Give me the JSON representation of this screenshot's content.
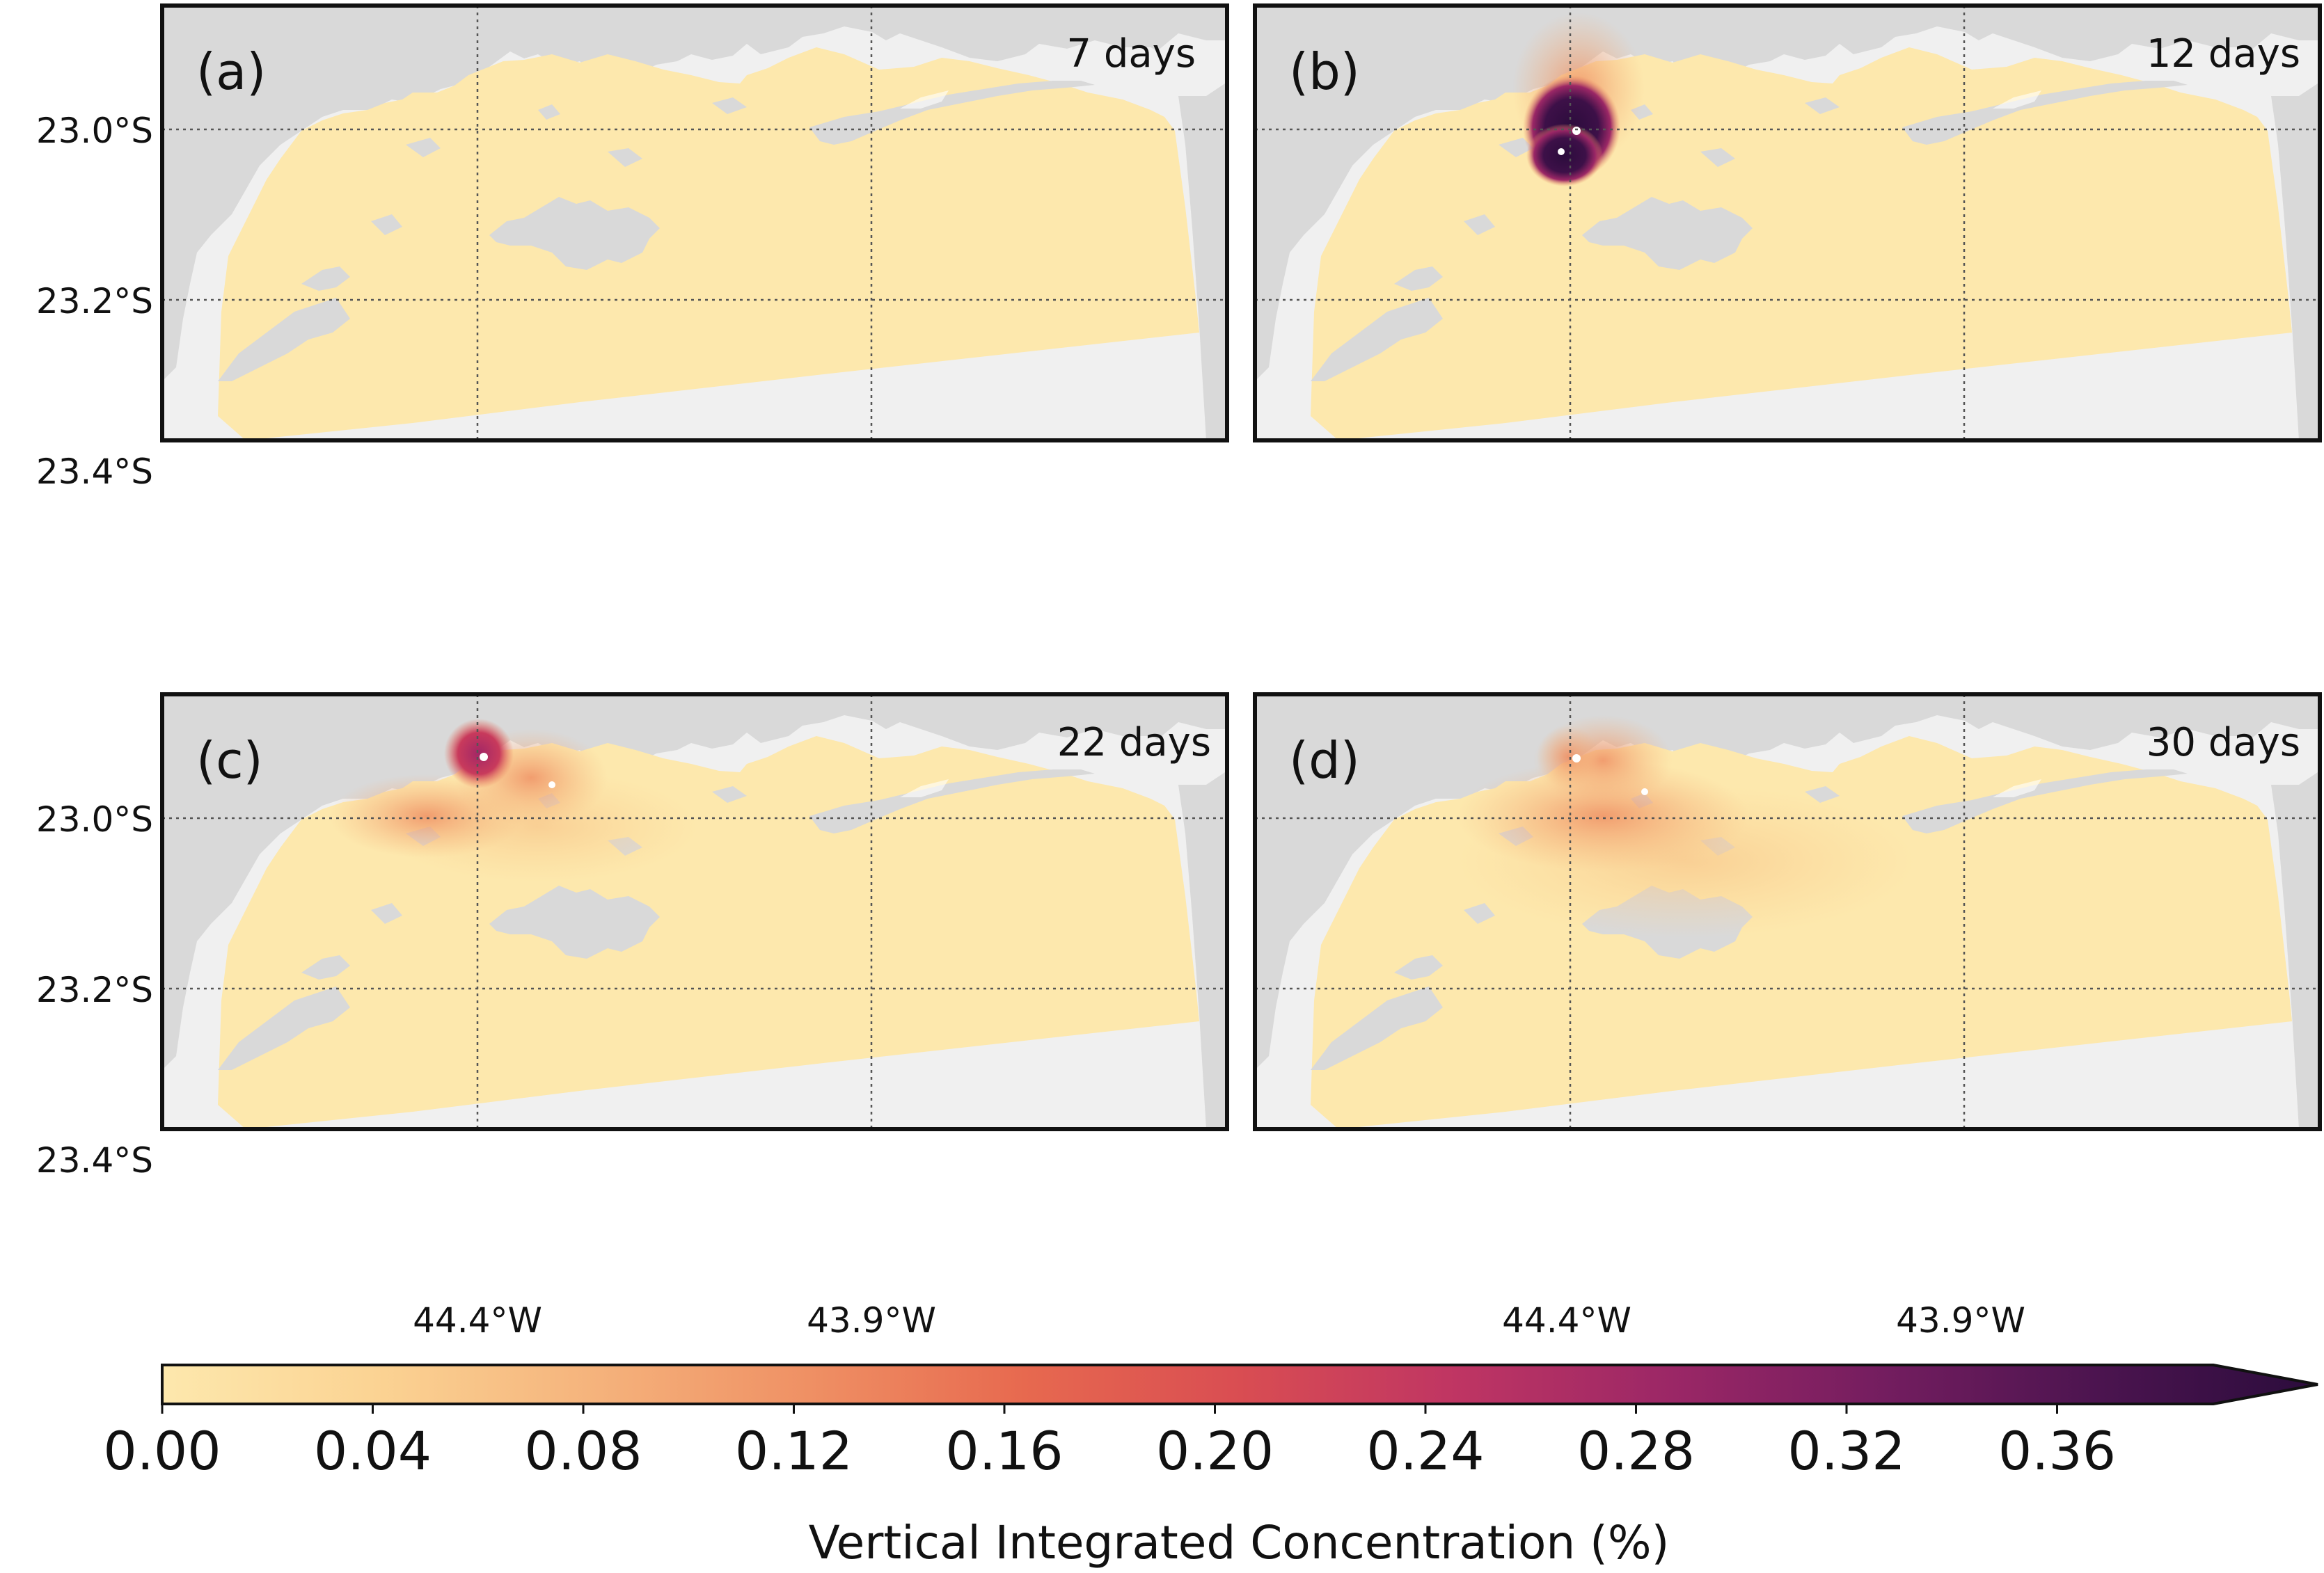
{
  "map": {
    "lat_labels": [
      "23.0°S",
      "23.2°S",
      "23.4°S"
    ],
    "lon_labels": [
      "44.4°W",
      "43.9°W"
    ],
    "colors": {
      "sea": "#fde8ad",
      "land": "#d9d9d9",
      "outside": "#f0f0f0",
      "frame": "#111111",
      "grid": "#555555"
    },
    "panels": [
      {
        "label": "(a)",
        "time": "7 days"
      },
      {
        "label": "(b)",
        "time": "12 days"
      },
      {
        "label": "(c)",
        "time": "22 days"
      },
      {
        "label": "(d)",
        "time": "30 days"
      }
    ]
  },
  "colorbar": {
    "title": "Vertical Integrated Concentration (%)",
    "ticks": [
      "0.00",
      "0.04",
      "0.08",
      "0.12",
      "0.16",
      "0.20",
      "0.24",
      "0.28",
      "0.32",
      "0.36"
    ],
    "colormap": "inferno-like (reversed magma)",
    "extend": "max"
  }
}
